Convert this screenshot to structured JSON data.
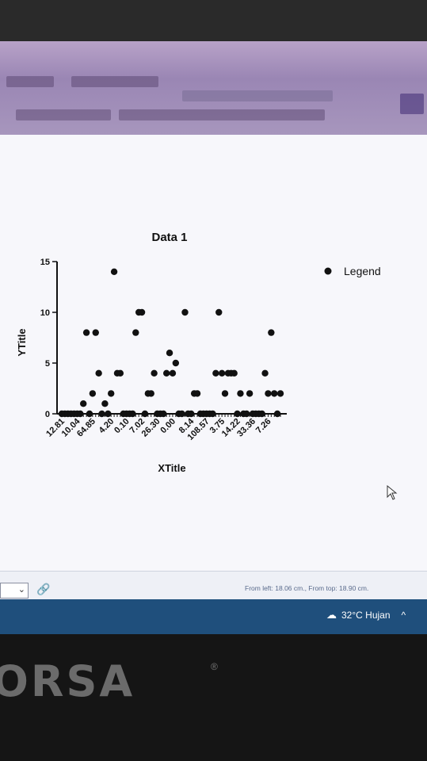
{
  "chart_data": {
    "type": "scatter",
    "title": "Data 1",
    "xlabel": "XTitle",
    "ylabel": "YTitle",
    "ylim": [
      0,
      15
    ],
    "yticks": [
      0,
      5,
      10,
      15
    ],
    "xtick_labels": [
      "12.81",
      "10.04",
      "64.85",
      "4.20",
      "0.10",
      "7.02",
      "26.30",
      "0.00",
      "8.14",
      "108.57",
      "3.75",
      "14.22",
      "33.36",
      "7.26"
    ],
    "legend": {
      "label": "Legend",
      "position": "top-right"
    },
    "series": [
      {
        "name": "Legend",
        "points": [
          [
            1,
            0
          ],
          [
            2,
            0
          ],
          [
            3,
            0
          ],
          [
            4,
            0
          ],
          [
            5,
            0
          ],
          [
            6,
            0
          ],
          [
            7,
            0
          ],
          [
            8,
            1
          ],
          [
            9,
            8
          ],
          [
            10,
            0
          ],
          [
            11,
            2
          ],
          [
            12,
            8
          ],
          [
            13,
            4
          ],
          [
            14,
            0
          ],
          [
            15,
            1
          ],
          [
            16,
            0
          ],
          [
            17,
            2
          ],
          [
            18,
            14
          ],
          [
            19,
            4
          ],
          [
            20,
            4
          ],
          [
            21,
            0
          ],
          [
            22,
            0
          ],
          [
            23,
            0
          ],
          [
            24,
            0
          ],
          [
            25,
            8
          ],
          [
            26,
            10
          ],
          [
            27,
            10
          ],
          [
            28,
            0
          ],
          [
            29,
            2
          ],
          [
            30,
            2
          ],
          [
            31,
            4
          ],
          [
            32,
            0
          ],
          [
            33,
            0
          ],
          [
            34,
            0
          ],
          [
            35,
            4
          ],
          [
            36,
            6
          ],
          [
            37,
            4
          ],
          [
            38,
            5
          ],
          [
            39,
            0
          ],
          [
            40,
            0
          ],
          [
            41,
            10
          ],
          [
            42,
            0
          ],
          [
            43,
            0
          ],
          [
            44,
            2
          ],
          [
            45,
            2
          ],
          [
            46,
            0
          ],
          [
            47,
            0
          ],
          [
            48,
            0
          ],
          [
            49,
            0
          ],
          [
            50,
            0
          ],
          [
            51,
            4
          ],
          [
            52,
            10
          ],
          [
            53,
            4
          ],
          [
            54,
            2
          ],
          [
            55,
            4
          ],
          [
            56,
            4
          ],
          [
            57,
            4
          ],
          [
            58,
            0
          ],
          [
            59,
            2
          ],
          [
            60,
            0
          ],
          [
            61,
            0
          ],
          [
            62,
            2
          ],
          [
            63,
            0
          ],
          [
            64,
            0
          ],
          [
            65,
            0
          ],
          [
            66,
            0
          ],
          [
            67,
            4
          ],
          [
            68,
            2
          ],
          [
            69,
            8
          ],
          [
            70,
            2
          ],
          [
            71,
            0
          ],
          [
            72,
            2
          ]
        ]
      }
    ]
  },
  "status": {
    "position_text": "From left: 18.06 cm., From top: 18.90 cm."
  },
  "taskbar": {
    "weather": "32°C  Hujan"
  },
  "monitor": {
    "brand": "ORSA",
    "registered_mark": "®"
  }
}
